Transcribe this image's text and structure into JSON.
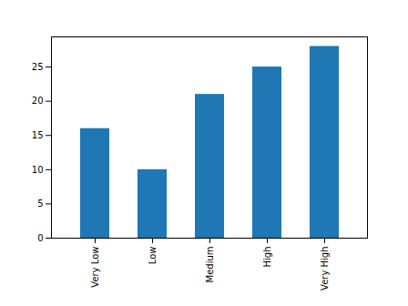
{
  "chart_data": {
    "type": "bar",
    "categories": [
      "Very Low",
      "Low",
      "Medium",
      "High",
      "Very High"
    ],
    "values": [
      16,
      10,
      21,
      25,
      28
    ],
    "color": "#1f77b4",
    "ylim": [
      0,
      29.4
    ],
    "yticks": [
      0,
      5,
      10,
      15,
      20,
      25
    ],
    "grid": false
  }
}
